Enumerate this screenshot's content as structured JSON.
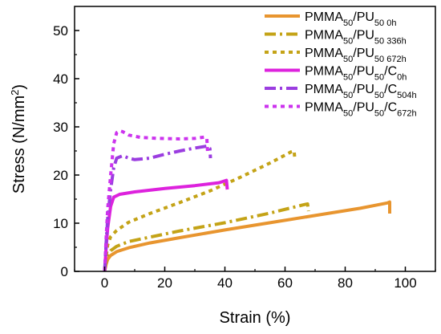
{
  "chart_data": {
    "type": "line",
    "xlabel": "Strain (%)",
    "ylabel_main": "Stress (N/mm",
    "ylabel_sup": "2",
    "ylabel_end": ")",
    "xlim": [
      -10,
      110
    ],
    "ylim": [
      0,
      55
    ],
    "xticks": [
      0,
      20,
      40,
      60,
      80,
      100
    ],
    "yticks": [
      0,
      10,
      20,
      30,
      40,
      50
    ],
    "xtick_labels": [
      "0",
      "20",
      "40",
      "60",
      "80",
      "100"
    ],
    "ytick_labels": [
      "0",
      "10",
      "20",
      "30",
      "40",
      "50"
    ],
    "grid": false,
    "legend_position": "top-right",
    "series": [
      {
        "label_main": "PMMA",
        "label_sub1": "50",
        "label_mid": "/PU",
        "label_sub2": "50 0h",
        "color": "#e8952f",
        "style": "solid",
        "points": [
          [
            0,
            0
          ],
          [
            0.5,
            1.5
          ],
          [
            1,
            2.5
          ],
          [
            2,
            3.3
          ],
          [
            4,
            4.1
          ],
          [
            8,
            4.9
          ],
          [
            15,
            5.9
          ],
          [
            25,
            7.0
          ],
          [
            40,
            8.6
          ],
          [
            55,
            10.1
          ],
          [
            70,
            11.6
          ],
          [
            85,
            13.1
          ],
          [
            94,
            14.2
          ],
          [
            94.8,
            14.4
          ],
          [
            94.8,
            12.0
          ]
        ]
      },
      {
        "label_main": "PMMA",
        "label_sub1": "50",
        "label_mid": "/PU",
        "label_sub2": "50 336h",
        "color": "#c4a317",
        "style": "dashdot",
        "points": [
          [
            0,
            0
          ],
          [
            0.5,
            2.0
          ],
          [
            1,
            3.3
          ],
          [
            2,
            4.3
          ],
          [
            4,
            5.2
          ],
          [
            8,
            6.2
          ],
          [
            15,
            7.1
          ],
          [
            25,
            8.4
          ],
          [
            40,
            10.1
          ],
          [
            55,
            12.1
          ],
          [
            66,
            13.8
          ],
          [
            67.5,
            14.0
          ],
          [
            67.8,
            12.5
          ]
        ]
      },
      {
        "label_main": "PMMA",
        "label_sub1": "50",
        "label_mid": "/PU",
        "label_sub2": "50 672h",
        "color": "#c4a317",
        "style": "dotted",
        "points": [
          [
            0,
            0
          ],
          [
            0.5,
            3.0
          ],
          [
            1,
            5.5
          ],
          [
            2,
            7.2
          ],
          [
            4,
            8.5
          ],
          [
            8,
            10.2
          ],
          [
            15,
            12.0
          ],
          [
            25,
            14.3
          ],
          [
            35,
            16.7
          ],
          [
            45,
            19.5
          ],
          [
            55,
            22.5
          ],
          [
            62,
            24.8
          ],
          [
            63,
            25.0
          ],
          [
            63.3,
            23.0
          ]
        ]
      },
      {
        "label_main": "PMMA",
        "label_sub1": "50",
        "label_mid": "/PU",
        "label_sub2": "50",
        "label_tail": "/C",
        "label_sub3": "0h",
        "color": "#dd22dd",
        "style": "solid",
        "points": [
          [
            0,
            0
          ],
          [
            0.5,
            5.0
          ],
          [
            1,
            9.0
          ],
          [
            2,
            13.5
          ],
          [
            3,
            15.4
          ],
          [
            5,
            16.0
          ],
          [
            10,
            16.5
          ],
          [
            20,
            17.2
          ],
          [
            30,
            17.8
          ],
          [
            38,
            18.4
          ],
          [
            40.5,
            18.9
          ],
          [
            40.8,
            17.0
          ]
        ]
      },
      {
        "label_main": "PMMA",
        "label_sub1": "50",
        "label_mid": "/PU",
        "label_sub2": "50",
        "label_tail": "/C",
        "label_sub3": "504h",
        "color": "#9b3de0",
        "style": "dashdot",
        "points": [
          [
            0,
            0
          ],
          [
            0.5,
            6.0
          ],
          [
            1,
            11.0
          ],
          [
            2,
            17.0
          ],
          [
            3,
            21.5
          ],
          [
            4,
            23.5
          ],
          [
            6,
            24.0
          ],
          [
            8,
            23.5
          ],
          [
            10,
            23.2
          ],
          [
            15,
            23.5
          ],
          [
            20,
            24.3
          ],
          [
            25,
            25.0
          ],
          [
            30,
            25.6
          ],
          [
            34,
            26.0
          ],
          [
            35,
            25.5
          ],
          [
            35.2,
            23.5
          ]
        ]
      },
      {
        "label_main": "PMMA",
        "label_sub1": "50",
        "label_mid": "/PU",
        "label_sub2": "50",
        "label_tail": "/C",
        "label_sub3": "672h",
        "color": "#cc33ee",
        "style": "dotted",
        "points": [
          [
            0,
            0
          ],
          [
            0.5,
            7.0
          ],
          [
            1,
            13.0
          ],
          [
            2,
            20.0
          ],
          [
            3,
            26.5
          ],
          [
            4,
            28.8
          ],
          [
            5,
            29.2
          ],
          [
            6,
            29.0
          ],
          [
            8,
            28.3
          ],
          [
            12,
            27.8
          ],
          [
            18,
            27.6
          ],
          [
            25,
            27.5
          ],
          [
            30,
            27.6
          ],
          [
            33.5,
            27.9
          ],
          [
            34,
            27.5
          ],
          [
            34.2,
            25.0
          ]
        ]
      }
    ]
  }
}
